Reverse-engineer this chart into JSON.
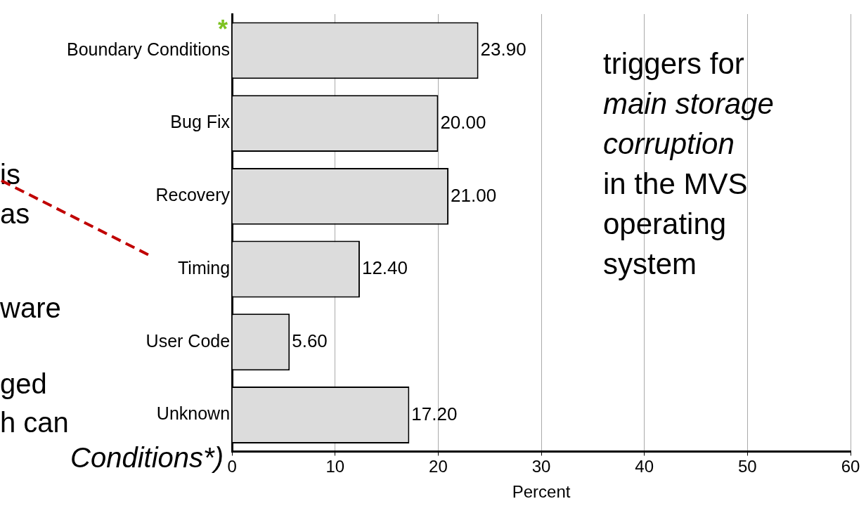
{
  "chart_data": {
    "type": "bar",
    "orientation": "horizontal",
    "xlabel": "Percent",
    "categories": [
      "Boundary Conditions",
      "Bug Fix",
      "Recovery",
      "Timing",
      "User Code",
      "Unknown"
    ],
    "values": [
      23.9,
      20.0,
      21.0,
      12.4,
      5.6,
      17.2
    ],
    "value_labels": [
      "23.90",
      "20.00",
      "21.00",
      "12.40",
      "5.60",
      "17.20"
    ],
    "color": "#dcdcdc",
    "xlim": [
      0,
      60
    ],
    "xticks": [
      0,
      10,
      20,
      30,
      40,
      50,
      60
    ],
    "grid": "x",
    "annotations": [
      {
        "text": "*",
        "x": 0,
        "y": "Boundary Conditions"
      },
      "triggers for",
      "main storage",
      "corruption",
      "in the MVS",
      "operating",
      "system",
      "is",
      "as",
      "ware",
      "ged",
      "h can",
      "Conditions*)"
    ]
  }
}
